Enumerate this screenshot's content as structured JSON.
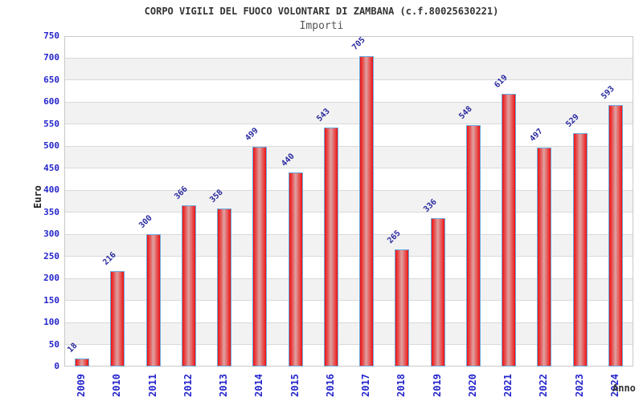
{
  "header": {
    "title": "CORPO VIGILI DEL FUOCO VOLONTARI DI ZAMBANA (c.f.80025630221)",
    "subtitle": "Importi"
  },
  "chart_data": {
    "type": "bar",
    "title": "CORPO VIGILI DEL FUOCO VOLONTARI DI ZAMBANA (c.f.80025630221)",
    "subtitle": "Importi",
    "xlabel": "Anno",
    "ylabel": "Euro",
    "categories": [
      "2009",
      "2010",
      "2011",
      "2012",
      "2013",
      "2014",
      "2015",
      "2016",
      "2017",
      "2018",
      "2019",
      "2020",
      "2021",
      "2022",
      "2023",
      "2024"
    ],
    "values": [
      18,
      216,
      300,
      366,
      358,
      499,
      440,
      543,
      705,
      265,
      336,
      548,
      619,
      497,
      529,
      593
    ],
    "ylim": [
      0,
      750
    ],
    "ytick_step": 50,
    "grid": "horizontal-every-50",
    "alternating_bands": true,
    "legend_position": "none",
    "colors": {
      "bar_fill_edge": "#ee1111",
      "bar_fill_center": "#dfa2a2",
      "bar_border": "#6aaade",
      "axis_tick_text": "#2424cc",
      "value_label_text": "#2a2aa0",
      "band_fill": "#f2f2f2",
      "gridline": "#d9d9d9",
      "plot_border": "#c8c8c8",
      "title_text": "#333333",
      "subtitle_text": "#555555"
    }
  }
}
